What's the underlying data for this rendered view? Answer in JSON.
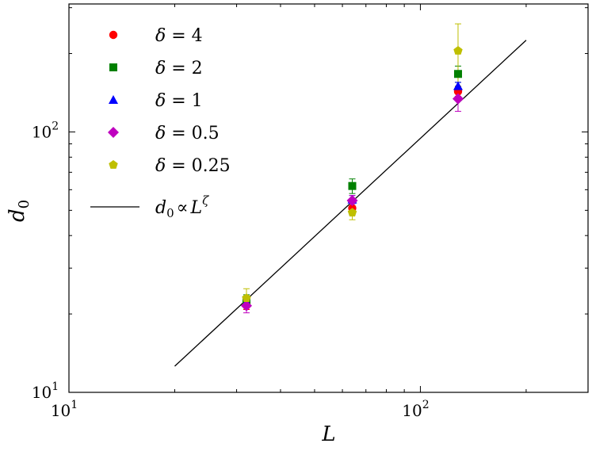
{
  "chart_data": {
    "type": "scatter",
    "xlabel": "L",
    "ylabel": "d0",
    "xscale": "log",
    "yscale": "log",
    "xlim": [
      10,
      300
    ],
    "ylim": [
      10,
      310
    ],
    "x_ticks": [
      {
        "value": 10,
        "label": "10",
        "exp": "1"
      },
      {
        "value": 100,
        "label": "10",
        "exp": "2"
      }
    ],
    "y_ticks": [
      {
        "value": 10,
        "label": "10",
        "exp": "1"
      },
      {
        "value": 100,
        "label": "10",
        "exp": "2"
      }
    ],
    "grid": false,
    "legend_position": "top-left",
    "series": [
      {
        "name": "δ = 4",
        "marker": "circle",
        "color": "#ff0000",
        "points": [
          {
            "x": 32,
            "y": 22.0,
            "err": 1.2
          },
          {
            "x": 64,
            "y": 51.0,
            "err": 2.0
          },
          {
            "x": 128,
            "y": 143.0,
            "err": 6.0
          }
        ]
      },
      {
        "name": "δ = 2",
        "marker": "square",
        "color": "#008000",
        "points": [
          {
            "x": 32,
            "y": 22.5,
            "err": 1.2
          },
          {
            "x": 64,
            "y": 62.0,
            "err": 4.0
          },
          {
            "x": 128,
            "y": 167.0,
            "err": 12.0
          }
        ]
      },
      {
        "name": "δ = 1",
        "marker": "triangle",
        "color": "#0000ff",
        "points": [
          {
            "x": 32,
            "y": 22.2,
            "err": 1.0
          },
          {
            "x": 64,
            "y": 55.0,
            "err": 2.0
          },
          {
            "x": 128,
            "y": 150.0,
            "err": 5.0
          }
        ]
      },
      {
        "name": "δ = 0.5",
        "marker": "diamond",
        "color": "#bf00bf",
        "points": [
          {
            "x": 32,
            "y": 21.5,
            "err": 1.3
          },
          {
            "x": 64,
            "y": 54.5,
            "err": 2.5
          },
          {
            "x": 128,
            "y": 134.0,
            "err": 14.0
          }
        ]
      },
      {
        "name": "δ = 0.25",
        "marker": "pentagon",
        "color": "#bfbf00",
        "points": [
          {
            "x": 32,
            "y": 23.0,
            "err": 2.0
          },
          {
            "x": 64,
            "y": 49.0,
            "err": 3.0
          },
          {
            "x": 128,
            "y": 205.0,
            "err": 55.0
          }
        ]
      }
    ],
    "fit_line": {
      "name": "d0 ∝ Lζ",
      "color": "#000000",
      "points": [
        {
          "x": 20,
          "y": 12.6
        },
        {
          "x": 200,
          "y": 225
        }
      ]
    }
  },
  "legend": {
    "items": [
      {
        "delta": "δ",
        "eq": " = 4"
      },
      {
        "delta": "δ",
        "eq": " = 2"
      },
      {
        "delta": "δ",
        "eq": " = 1"
      },
      {
        "delta": "δ",
        "eq": " = 0.5"
      },
      {
        "delta": "δ",
        "eq": " = 0.25"
      }
    ],
    "fit": {
      "d": "d",
      "sub": "0",
      "prop": "∝",
      "L": "L",
      "sup": "ζ"
    }
  },
  "axes": {
    "x_label": "L",
    "y_label_main": "d",
    "y_label_sub": "0"
  }
}
